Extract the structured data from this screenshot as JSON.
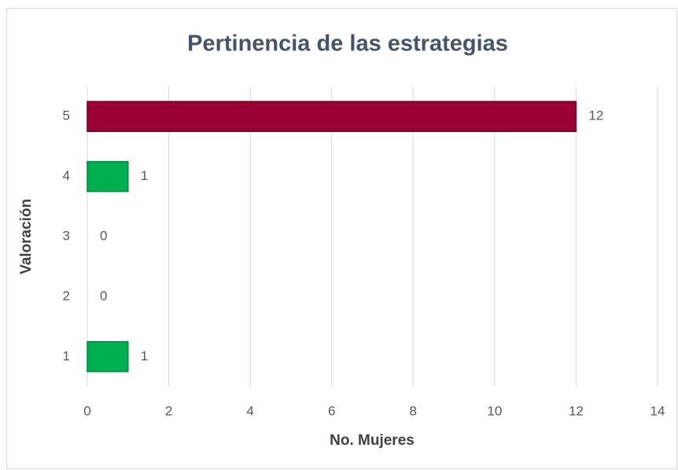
{
  "chart_data": {
    "type": "bar",
    "orientation": "horizontal",
    "title": "Pertinencia de las estrategias",
    "x_label": "No. Mujeres",
    "y_label": "Valoración",
    "categories": [
      "1",
      "2",
      "3",
      "4",
      "5"
    ],
    "values": [
      1,
      0,
      0,
      1,
      12
    ],
    "colors": [
      "#00b050",
      "#00b050",
      "#00b050",
      "#00b050",
      "#990033"
    ],
    "xlim": [
      0,
      14
    ],
    "xticks": [
      0,
      2,
      4,
      6,
      8,
      10,
      12,
      14
    ],
    "grid": true
  }
}
